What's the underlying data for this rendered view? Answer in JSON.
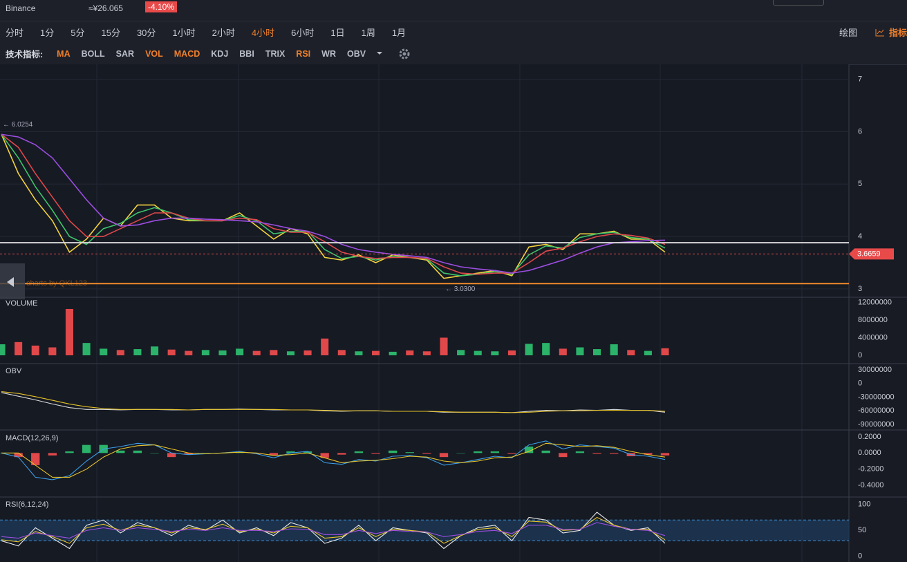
{
  "header": {
    "exchange": "Binance",
    "price": "≈¥26.065",
    "change": "-4.10%"
  },
  "timeframes": [
    {
      "label": "分时"
    },
    {
      "label": "1分"
    },
    {
      "label": "5分"
    },
    {
      "label": "15分"
    },
    {
      "label": "30分"
    },
    {
      "label": "1小时"
    },
    {
      "label": "2小时"
    },
    {
      "label": "4小时",
      "active": true
    },
    {
      "label": "6小时"
    },
    {
      "label": "1日"
    },
    {
      "label": "1周"
    },
    {
      "label": "1月"
    }
  ],
  "tools": [
    "绘图",
    "指标"
  ],
  "indicator_label": "技术指标:",
  "indicators": [
    {
      "label": "MA",
      "active": true
    },
    {
      "label": "BOLL"
    },
    {
      "label": "SAR"
    },
    {
      "label": "VOL",
      "active": true
    },
    {
      "label": "MACD",
      "active": true
    },
    {
      "label": "KDJ"
    },
    {
      "label": "BBI"
    },
    {
      "label": "TRIX"
    },
    {
      "label": "RSI",
      "active": true
    },
    {
      "label": "WR"
    },
    {
      "label": "OBV"
    }
  ],
  "watermark": "charts by QKL123",
  "chart_data": [
    {
      "type": "line",
      "ylim": [
        2.84,
        7.26
      ],
      "yticks": [
        3,
        4,
        5,
        6,
        7
      ],
      "grid": true,
      "series": [
        {
          "color": "#f2d23c",
          "values": [
            5.95,
            5.2,
            4.7,
            4.3,
            3.7,
            3.95,
            4.35,
            4.2,
            4.6,
            4.6,
            4.35,
            4.3,
            4.3,
            4.3,
            4.45,
            4.2,
            3.95,
            4.15,
            4.05,
            3.6,
            3.55,
            3.65,
            3.5,
            3.65,
            3.6,
            3.55,
            3.2,
            3.25,
            3.3,
            3.35,
            3.25,
            3.8,
            3.85,
            3.75,
            4.05,
            4.05,
            4.1,
            3.95,
            3.95,
            3.7
          ]
        },
        {
          "color": "#3fc46a",
          "values": [
            5.95,
            5.5,
            4.95,
            4.5,
            4.0,
            3.85,
            4.15,
            4.25,
            4.45,
            4.55,
            4.45,
            4.32,
            4.3,
            4.3,
            4.4,
            4.3,
            4.05,
            4.1,
            4.1,
            3.75,
            3.58,
            3.62,
            3.55,
            3.62,
            3.6,
            3.57,
            3.3,
            3.25,
            3.28,
            3.33,
            3.28,
            3.65,
            3.82,
            3.78,
            3.98,
            4.05,
            4.08,
            3.98,
            3.95,
            3.78
          ]
        },
        {
          "color": "#e0484a",
          "values": [
            5.95,
            5.7,
            5.2,
            4.75,
            4.3,
            4.0,
            4.0,
            4.15,
            4.3,
            4.45,
            4.45,
            4.35,
            4.3,
            4.3,
            4.35,
            4.32,
            4.15,
            4.08,
            4.08,
            3.9,
            3.7,
            3.62,
            3.58,
            3.6,
            3.6,
            3.58,
            3.42,
            3.3,
            3.28,
            3.3,
            3.3,
            3.5,
            3.72,
            3.78,
            3.9,
            4.0,
            4.05,
            4.02,
            3.97,
            3.85
          ]
        },
        {
          "color": "#9b4ee0",
          "values": [
            5.95,
            5.9,
            5.75,
            5.5,
            5.1,
            4.7,
            4.35,
            4.2,
            4.22,
            4.3,
            4.35,
            4.35,
            4.33,
            4.32,
            4.3,
            4.28,
            4.22,
            4.15,
            4.1,
            4.0,
            3.85,
            3.75,
            3.7,
            3.66,
            3.63,
            3.6,
            3.5,
            3.42,
            3.38,
            3.35,
            3.3,
            3.35,
            3.45,
            3.55,
            3.68,
            3.8,
            3.88,
            3.9,
            3.92,
            3.93
          ]
        }
      ],
      "hlines": [
        {
          "value": 3.88,
          "color": "#d8d8d8"
        },
        {
          "value": 3.1,
          "color": "#f08a2a"
        }
      ],
      "last_price": {
        "value": 3.6659,
        "label": "3.6659",
        "color": "#e84a4a"
      },
      "high": {
        "value": 6.0254,
        "label": "← 6.0254"
      },
      "low": {
        "value": 3.03,
        "label": "← 3.0300"
      }
    },
    {
      "type": "bar",
      "title": "VOLUME",
      "ylim": [
        0,
        13000000
      ],
      "yticks": [
        0,
        4000000,
        8000000,
        12000000
      ],
      "up_color": "#2bb36a",
      "down_color": "#e0484a",
      "values": [
        2500000,
        3000000,
        2200000,
        1800000,
        10500000,
        2800000,
        1500000,
        1200000,
        1400000,
        2000000,
        1300000,
        1000000,
        1200000,
        1100000,
        1500000,
        1000000,
        1200000,
        900000,
        1100000,
        3800000,
        1200000,
        900000,
        1000000,
        800000,
        1100000,
        900000,
        4000000,
        1200000,
        1000000,
        900000,
        1100000,
        2600000,
        2800000,
        1500000,
        1800000,
        1400000,
        2500000,
        1200000,
        1000000,
        1600000
      ]
    },
    {
      "type": "line",
      "title": "OBV",
      "ylim": [
        -102000000,
        42000000
      ],
      "yticks": [
        30000000,
        0,
        -30000000,
        -60000000,
        -90000000
      ],
      "series": [
        {
          "color": "#d9d9d9",
          "values": [
            -20000000,
            -28000000,
            -36000000,
            -45000000,
            -53000000,
            -57000000,
            -57000000,
            -58000000,
            -57000000,
            -57000000,
            -58000000,
            -58000000,
            -57000000,
            -57000000,
            -56000000,
            -57000000,
            -58000000,
            -58000000,
            -58000000,
            -60000000,
            -61000000,
            -60000000,
            -60000000,
            -61000000,
            -61000000,
            -61000000,
            -63000000,
            -63000000,
            -63000000,
            -63000000,
            -64000000,
            -61000000,
            -59000000,
            -60000000,
            -58000000,
            -59000000,
            -57000000,
            -59000000,
            -59000000,
            -63000000
          ]
        },
        {
          "color": "#e6c229",
          "values": [
            -18000000,
            -22000000,
            -29000000,
            -37000000,
            -45000000,
            -51000000,
            -55000000,
            -57000000,
            -57000000,
            -57000000,
            -57000000,
            -58000000,
            -57000000,
            -57000000,
            -57000000,
            -57000000,
            -57000000,
            -58000000,
            -58000000,
            -59000000,
            -60000000,
            -60000000,
            -60000000,
            -61000000,
            -61000000,
            -61000000,
            -62000000,
            -63000000,
            -63000000,
            -63000000,
            -64000000,
            -63000000,
            -61000000,
            -60000000,
            -60000000,
            -59000000,
            -59000000,
            -59000000,
            -59000000,
            -61000000
          ]
        }
      ]
    },
    {
      "type": "line",
      "title": "MACD(12,26,9)",
      "ylim": [
        -0.536,
        0.268
      ],
      "yticks": [
        {
          "value": 0.2,
          "label": "0.2000"
        },
        {
          "value": 0,
          "label": "0.0000"
        },
        {
          "value": -0.2,
          "label": "-0.2000"
        },
        {
          "value": -0.4,
          "label": "-0.4000"
        }
      ],
      "series": [
        {
          "color": "#3a9ee8",
          "values": [
            0,
            -0.05,
            -0.3,
            -0.33,
            -0.28,
            -0.1,
            0.05,
            0.08,
            0.12,
            0.1,
            0.0,
            -0.02,
            -0.01,
            0.0,
            0.02,
            -0.01,
            -0.06,
            0.0,
            0.02,
            -0.12,
            -0.14,
            -0.08,
            -0.1,
            -0.04,
            -0.03,
            -0.06,
            -0.15,
            -0.12,
            -0.08,
            -0.04,
            -0.06,
            0.1,
            0.15,
            0.05,
            0.1,
            0.08,
            0.06,
            -0.02,
            -0.04,
            -0.08
          ]
        },
        {
          "color": "#e6c229",
          "values": [
            0,
            0.0,
            -0.15,
            -0.3,
            -0.3,
            -0.2,
            -0.05,
            0.05,
            0.09,
            0.1,
            0.05,
            0.0,
            -0.01,
            0.0,
            0.01,
            0.0,
            -0.03,
            -0.02,
            0.0,
            -0.06,
            -0.12,
            -0.1,
            -0.09,
            -0.07,
            -0.04,
            -0.05,
            -0.1,
            -0.12,
            -0.1,
            -0.06,
            -0.05,
            0.02,
            0.12,
            0.1,
            0.08,
            0.09,
            0.07,
            0.02,
            -0.02,
            -0.05
          ]
        }
      ],
      "histogram": {
        "up_color": "#2bb36a",
        "down_color": "#e0484a",
        "values": [
          0,
          -0.05,
          -0.15,
          -0.03,
          0.02,
          0.1,
          0.1,
          0.03,
          0.03,
          0,
          -0.05,
          -0.02,
          0,
          0,
          0.01,
          -0.01,
          -0.03,
          0.02,
          0.02,
          -0.06,
          -0.02,
          0.02,
          -0.01,
          0.03,
          0.01,
          -0.01,
          -0.05,
          0,
          0.02,
          0.02,
          -0.01,
          0.08,
          0.03,
          -0.05,
          0.02,
          -0.01,
          -0.01,
          -0.04,
          -0.02,
          -0.03
        ]
      }
    },
    {
      "type": "line",
      "title": "RSI(6,12,24)",
      "ylim": [
        -11,
        113
      ],
      "yticks": [
        0,
        50,
        100
      ],
      "band": [
        30,
        70
      ],
      "series": [
        {
          "color": "#e8e8e8",
          "values": [
            30,
            20,
            55,
            35,
            15,
            60,
            70,
            45,
            65,
            55,
            40,
            60,
            50,
            70,
            45,
            55,
            40,
            65,
            55,
            25,
            35,
            60,
            30,
            55,
            50,
            45,
            15,
            40,
            55,
            60,
            30,
            75,
            70,
            45,
            50,
            85,
            60,
            50,
            55,
            25
          ]
        },
        {
          "color": "#e6c229",
          "values": [
            32,
            28,
            48,
            38,
            25,
            55,
            62,
            50,
            60,
            55,
            45,
            55,
            52,
            62,
            48,
            52,
            45,
            58,
            55,
            35,
            38,
            55,
            38,
            52,
            50,
            47,
            25,
            40,
            52,
            55,
            38,
            68,
            66,
            50,
            52,
            75,
            60,
            52,
            52,
            32
          ]
        },
        {
          "color": "#9b4ee0",
          "values": [
            38,
            35,
            45,
            40,
            35,
            50,
            55,
            50,
            55,
            52,
            48,
            52,
            50,
            55,
            50,
            50,
            48,
            53,
            52,
            42,
            42,
            50,
            44,
            50,
            48,
            47,
            38,
            42,
            48,
            50,
            44,
            60,
            60,
            52,
            52,
            65,
            58,
            52,
            50,
            40
          ]
        }
      ]
    }
  ]
}
